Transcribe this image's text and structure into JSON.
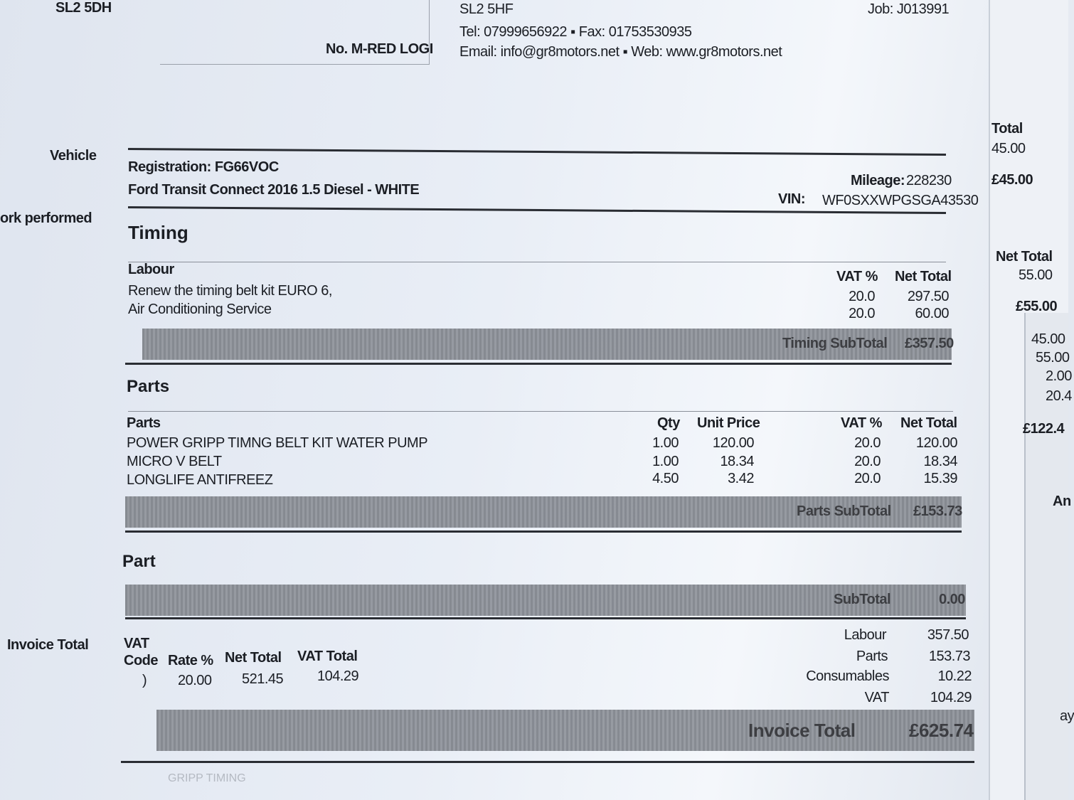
{
  "header": {
    "postcode_left": "SL2 5DH",
    "order_no": "No. M-RED LOGI",
    "postcode_right": "SL2 5HF",
    "contact_tel_fax": "Tel: 07999656922 ▪ Fax: 01753530935",
    "contact_email_web": "Email: info@gr8motors.net ▪ Web: www.gr8motors.net",
    "job_no": "Job: J013991"
  },
  "vehicle": {
    "section_label": "Vehicle",
    "registration": "Registration: FG66VOC",
    "description": "Ford Transit Connect  2016 1.5 Diesel - WHITE",
    "mileage_label": "Mileage:",
    "mileage": "228230",
    "vin_label": "VIN:",
    "vin": "WF0SXXWPGSGA43530"
  },
  "work": {
    "section_label": "ork performed",
    "title": "Timing",
    "labour_header": "Labour",
    "vat_header": "VAT %",
    "net_header": "Net Total",
    "items": [
      {
        "desc": "Renew the timing belt kit EURO 6,",
        "vat": "20.0",
        "net": "297.50"
      },
      {
        "desc": "Air Conditioning Service",
        "vat": "20.0",
        "net": "60.00"
      }
    ],
    "subtotal_label": "Timing SubTotal",
    "subtotal": "£357.50"
  },
  "parts": {
    "title": "Parts",
    "headers": {
      "desc": "Parts",
      "qty": "Qty",
      "unit": "Unit Price",
      "vat": "VAT %",
      "net": "Net Total"
    },
    "items": [
      {
        "desc": "POWER GRIPP TIMNG BELT KIT WATER PUMP",
        "qty": "1.00",
        "unit": "120.00",
        "vat": "20.0",
        "net": "120.00"
      },
      {
        "desc": "MICRO V BELT",
        "qty": "1.00",
        "unit": "18.34",
        "vat": "20.0",
        "net": "18.34"
      },
      {
        "desc": "LONGLIFE ANTIFREEZ",
        "qty": "4.50",
        "unit": "3.42",
        "vat": "20.0",
        "net": "15.39"
      }
    ],
    "subtotal_label": "Parts SubTotal",
    "subtotal": "£153.73"
  },
  "part2": {
    "title": "Part",
    "subtotal_label": "SubTotal",
    "subtotal": "0.00"
  },
  "invoice": {
    "section_label": "Invoice Total",
    "vat_label": "VAT",
    "vat_headers": {
      "code": "Code",
      "rate": "Rate %",
      "net": "Net Total",
      "vat": "VAT Total"
    },
    "vat_row": {
      "code": ")",
      "rate": "20.00",
      "net": "521.45",
      "vat": "104.29"
    },
    "summary": [
      {
        "label": "Labour",
        "value": "357.50"
      },
      {
        "label": "Parts",
        "value": "153.73"
      },
      {
        "label": "Consumables",
        "value": "10.22"
      },
      {
        "label": "VAT",
        "value": "104.29"
      }
    ],
    "total_label": "Invoice Total",
    "total": "£625.74",
    "footer_fragment": "GRIPP TIMING"
  },
  "side_sheet": {
    "total_header": "Total",
    "v1": "45.00",
    "v1_total": "£45.00",
    "net_header": "Net Total",
    "v2": "55.00",
    "v2_total": "£55.00",
    "list": [
      "45.00",
      "55.00",
      "2.00",
      "20.4"
    ],
    "grand": "£122.4",
    "frag1": "An",
    "frag2": "ay"
  }
}
